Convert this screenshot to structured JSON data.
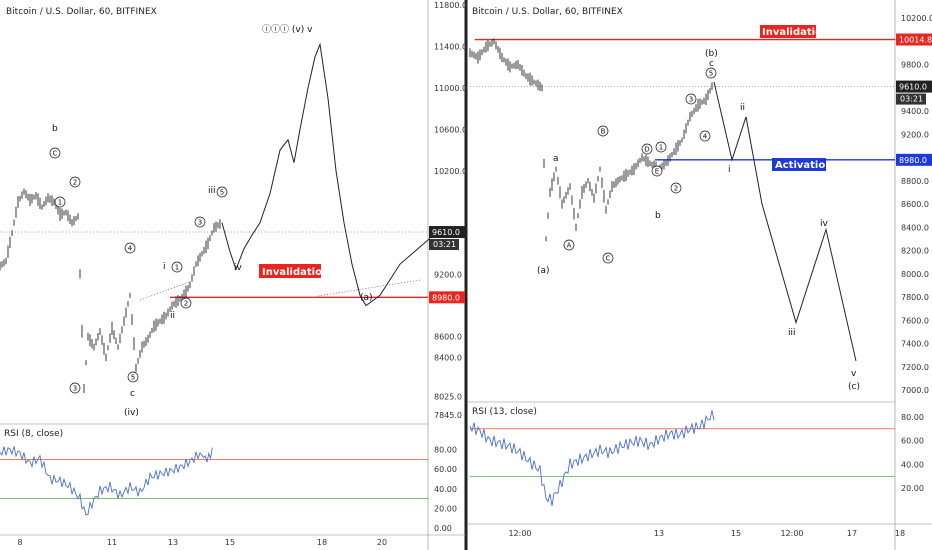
{
  "chart_data": [
    {
      "type": "line",
      "title": "Bitcoin / U.S. Dollar, 60, BITFINEX",
      "ylim": [
        7845,
        11800
      ],
      "y_ticks": [
        "11800.0",
        "11400.0",
        "11000.0",
        "10600.0",
        "10200.0",
        "9610.0",
        "9200.0",
        "8980.0",
        "8600.0",
        "8400.0",
        "8025.0",
        "7845.0"
      ],
      "x_ticks": [
        "8",
        "11",
        "13",
        "15",
        "18",
        "20"
      ],
      "current_price": "9610.0",
      "countdown": "03:21",
      "invalidation": {
        "label": "Invalidation",
        "price": "8980.0"
      },
      "price_path": [
        [
          0,
          9280
        ],
        [
          6,
          9330
        ],
        [
          12,
          9600
        ],
        [
          18,
          9900
        ],
        [
          24,
          10000
        ],
        [
          30,
          9920
        ],
        [
          36,
          9960
        ],
        [
          42,
          9850
        ],
        [
          48,
          9940
        ],
        [
          54,
          9900
        ],
        [
          60,
          9780
        ],
        [
          66,
          9800
        ],
        [
          72,
          9700
        ],
        [
          78,
          9760
        ],
        [
          84,
          8100
        ],
        [
          88,
          8600
        ],
        [
          94,
          8500
        ],
        [
          100,
          8650
        ],
        [
          106,
          8400
        ],
        [
          112,
          8680
        ],
        [
          118,
          8500
        ],
        [
          124,
          8750
        ],
        [
          130,
          9000
        ],
        [
          136,
          8300
        ],
        [
          142,
          8500
        ],
        [
          148,
          8580
        ],
        [
          154,
          8700
        ],
        [
          160,
          8750
        ],
        [
          166,
          8800
        ],
        [
          172,
          8900
        ],
        [
          178,
          8950
        ],
        [
          184,
          9000
        ],
        [
          190,
          9100
        ],
        [
          196,
          9300
        ],
        [
          202,
          9400
        ],
        [
          208,
          9500
        ],
        [
          214,
          9650
        ],
        [
          222,
          9700
        ],
        [
          230,
          9420
        ],
        [
          236,
          9250
        ],
        [
          244,
          9450
        ],
        [
          252,
          9580
        ],
        [
          260,
          9700
        ],
        [
          270,
          9980
        ],
        [
          280,
          10400
        ],
        [
          288,
          10500
        ],
        [
          294,
          10280
        ],
        [
          300,
          10600
        ],
        [
          308,
          11000
        ],
        [
          315,
          11300
        ],
        [
          320,
          11420
        ],
        [
          328,
          10900
        ],
        [
          336,
          10200
        ],
        [
          344,
          9700
        ],
        [
          352,
          9300
        ],
        [
          360,
          9000
        ],
        [
          366,
          8900
        ],
        [
          380,
          9000
        ],
        [
          400,
          9300
        ],
        [
          430,
          9550
        ]
      ],
      "rsi": {
        "label": "RSI (8, close)",
        "ticks": [
          "80.00",
          "60.00",
          "40.00",
          "20.00",
          "0.00"
        ],
        "ylim": [
          0,
          100
        ],
        "overbought": 70,
        "oversold": 30,
        "values": [
          [
            0,
            77
          ],
          [
            10,
            80
          ],
          [
            20,
            76
          ],
          [
            30,
            66
          ],
          [
            40,
            71
          ],
          [
            50,
            50
          ],
          [
            60,
            48
          ],
          [
            70,
            42
          ],
          [
            80,
            30
          ],
          [
            86,
            13
          ],
          [
            92,
            25
          ],
          [
            100,
            38
          ],
          [
            110,
            42
          ],
          [
            120,
            33
          ],
          [
            130,
            42
          ],
          [
            140,
            36
          ],
          [
            150,
            52
          ],
          [
            160,
            55
          ],
          [
            170,
            58
          ],
          [
            180,
            62
          ],
          [
            190,
            68
          ],
          [
            200,
            76
          ],
          [
            207,
            70
          ],
          [
            214,
            80
          ]
        ]
      },
      "wave_labels": [
        "b",
        "c",
        "(iv)",
        "iii",
        "iv",
        "(a)",
        "i",
        "ii"
      ],
      "circle_labels": [
        "C",
        "2",
        "1",
        "3",
        "4",
        "5",
        "1",
        "2",
        "3",
        "5"
      ],
      "top_label": "ⓘⓘⓘ (v) v"
    },
    {
      "type": "line",
      "title": "Bitcoin / U.S. Dollar, 60, BITFINEX",
      "ylim": [
        7000,
        10200
      ],
      "y_ticks": [
        "10200.0",
        "10014.8",
        "9800.0",
        "9610.0",
        "9400.0",
        "9200.0",
        "8980.0",
        "8800.0",
        "8600.0",
        "8400.0",
        "8200.0",
        "8000.0",
        "7800.0",
        "7600.0",
        "7400.0",
        "7200.0",
        "7000.0"
      ],
      "x_ticks": [
        "12:00",
        "13",
        "15",
        "12:00",
        "17",
        "18"
      ],
      "current_price": "9610.0",
      "countdown": "03:21",
      "invalidation": {
        "label": "Invalidation",
        "price": "10014.8"
      },
      "activation": {
        "label": "Activation",
        "price": "8980.0"
      },
      "price_path": [
        [
          0,
          9900
        ],
        [
          8,
          9860
        ],
        [
          16,
          9950
        ],
        [
          24,
          10000
        ],
        [
          32,
          9860
        ],
        [
          40,
          9780
        ],
        [
          48,
          9800
        ],
        [
          56,
          9700
        ],
        [
          64,
          9650
        ],
        [
          72,
          9600
        ],
        [
          76,
          8300
        ],
        [
          80,
          8700
        ],
        [
          86,
          8900
        ],
        [
          92,
          8600
        ],
        [
          100,
          8750
        ],
        [
          106,
          8400
        ],
        [
          112,
          8700
        ],
        [
          118,
          8800
        ],
        [
          124,
          8650
        ],
        [
          130,
          8900
        ],
        [
          136,
          8550
        ],
        [
          142,
          8750
        ],
        [
          148,
          8800
        ],
        [
          156,
          8850
        ],
        [
          164,
          8900
        ],
        [
          172,
          9000
        ],
        [
          180,
          8950
        ],
        [
          188,
          8900
        ],
        [
          196,
          8950
        ],
        [
          204,
          9050
        ],
        [
          212,
          9150
        ],
        [
          220,
          9350
        ],
        [
          228,
          9450
        ],
        [
          236,
          9500
        ],
        [
          244,
          9650
        ]
      ],
      "projection": [
        [
          244,
          9650
        ],
        [
          262,
          8980
        ],
        [
          276,
          9350
        ],
        [
          292,
          8600
        ],
        [
          326,
          7580
        ],
        [
          356,
          8380
        ],
        [
          386,
          7250
        ]
      ],
      "rsi": {
        "label": "RSI (13, close)",
        "ticks": [
          "80.00",
          "60.00",
          "40.00",
          "20.00"
        ],
        "ylim": [
          0,
          90
        ],
        "overbought": 70,
        "oversold": 30,
        "values": [
          [
            0,
            72
          ],
          [
            10,
            68
          ],
          [
            20,
            60
          ],
          [
            30,
            58
          ],
          [
            40,
            55
          ],
          [
            50,
            50
          ],
          [
            60,
            42
          ],
          [
            70,
            35
          ],
          [
            76,
            12
          ],
          [
            82,
            10
          ],
          [
            90,
            22
          ],
          [
            100,
            40
          ],
          [
            110,
            44
          ],
          [
            120,
            48
          ],
          [
            130,
            52
          ],
          [
            140,
            50
          ],
          [
            150,
            55
          ],
          [
            160,
            58
          ],
          [
            170,
            60
          ],
          [
            180,
            56
          ],
          [
            190,
            62
          ],
          [
            200,
            66
          ],
          [
            210,
            65
          ],
          [
            220,
            70
          ],
          [
            230,
            72
          ],
          [
            240,
            80
          ],
          [
            246,
            83
          ]
        ]
      },
      "wave_labels": [
        "(b)",
        "c",
        "a",
        "b",
        "(a)",
        "i",
        "ii",
        "iii",
        "iv",
        "v",
        "(c)"
      ],
      "circle_labels": [
        "B",
        "A",
        "C",
        "D",
        "E",
        "1",
        "2",
        "3",
        "4",
        "5"
      ]
    }
  ]
}
